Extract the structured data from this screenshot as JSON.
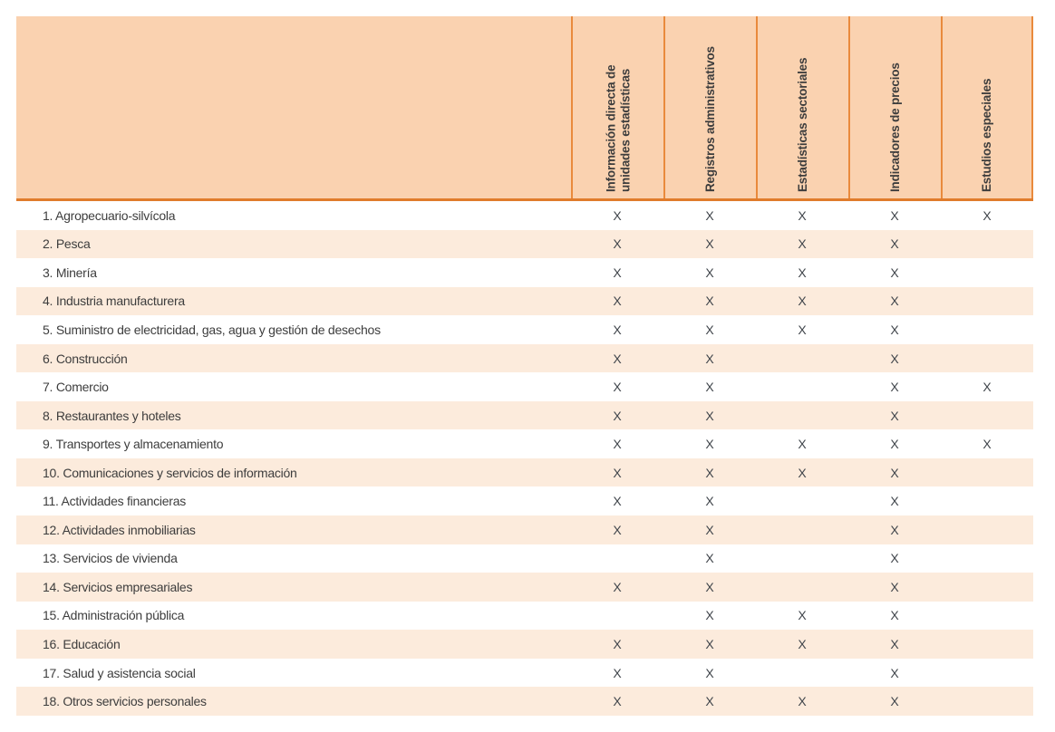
{
  "table": {
    "mark_glyph": "X",
    "columns": [
      {
        "lines": [
          "Información directa de",
          "unidades estadísticas"
        ]
      },
      {
        "lines": [
          "Registros administrativos"
        ]
      },
      {
        "lines": [
          "Estadísticas sectoriales"
        ]
      },
      {
        "lines": [
          "Indicadores de precios"
        ]
      },
      {
        "lines": [
          "Estudios especiales"
        ]
      }
    ],
    "rows": [
      {
        "label": "1. Agropecuario-silvícola",
        "marks": [
          1,
          1,
          1,
          1,
          1
        ]
      },
      {
        "label": "2. Pesca",
        "marks": [
          1,
          1,
          1,
          1,
          0
        ]
      },
      {
        "label": "3. Minería",
        "marks": [
          1,
          1,
          1,
          1,
          0
        ]
      },
      {
        "label": "4. Industria manufacturera",
        "marks": [
          1,
          1,
          1,
          1,
          0
        ]
      },
      {
        "label": "5. Suministro de electricidad, gas, agua y gestión de desechos",
        "marks": [
          1,
          1,
          1,
          1,
          0
        ]
      },
      {
        "label": "6. Construcción",
        "marks": [
          1,
          1,
          0,
          1,
          0
        ]
      },
      {
        "label": "7. Comercio",
        "marks": [
          1,
          1,
          0,
          1,
          1
        ]
      },
      {
        "label": "8. Restaurantes y hoteles",
        "marks": [
          1,
          1,
          0,
          1,
          0
        ]
      },
      {
        "label": "9. Transportes y almacenamiento",
        "marks": [
          1,
          1,
          1,
          1,
          1
        ]
      },
      {
        "label": "10. Comunicaciones y servicios de información",
        "marks": [
          1,
          1,
          1,
          1,
          0
        ]
      },
      {
        "label": "11. Actividades financieras",
        "marks": [
          1,
          1,
          0,
          1,
          0
        ]
      },
      {
        "label": "12. Actividades inmobiliarias",
        "marks": [
          1,
          1,
          0,
          1,
          0
        ]
      },
      {
        "label": "13. Servicios de vivienda",
        "marks": [
          0,
          1,
          0,
          1,
          0
        ]
      },
      {
        "label": "14. Servicios empresariales",
        "marks": [
          1,
          1,
          0,
          1,
          0
        ]
      },
      {
        "label": "15. Administración pública",
        "marks": [
          0,
          1,
          1,
          1,
          0
        ]
      },
      {
        "label": "16. Educación",
        "marks": [
          1,
          1,
          1,
          1,
          0
        ]
      },
      {
        "label": "17. Salud y asistencia social",
        "marks": [
          1,
          1,
          0,
          1,
          0
        ]
      },
      {
        "label": "18. Otros servicios personales",
        "marks": [
          1,
          1,
          1,
          1,
          0
        ]
      }
    ],
    "colors": {
      "header_bg": "#fad2b0",
      "stripe_bg": "#fcebdc",
      "border_orange": "#e98a3c",
      "header_bottom_border": "#e07c2c",
      "text": "#3d3d3d",
      "mark": "#40454b"
    }
  }
}
